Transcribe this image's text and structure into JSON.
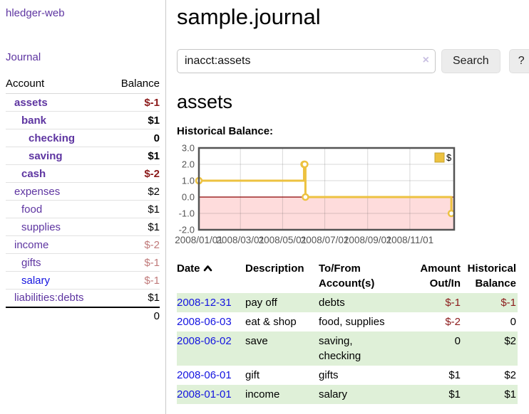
{
  "colors": {
    "accent_purple": "#5e35a1",
    "link_blue": "#1414e0",
    "negative_strong": "#8b1a1a",
    "negative_soft": "#c07a7a",
    "row_green": "#dff0d8",
    "series_gold": "#edc240",
    "negative_region_pink": "#fedcdc",
    "zero_line_red": "#8b0000",
    "axis_gray": "#545454"
  },
  "sidebar": {
    "brand": "hledger-web",
    "journal_link": "Journal",
    "table": {
      "headers": {
        "account": "Account",
        "balance": "Balance"
      },
      "accounts": [
        {
          "name": "assets",
          "level": 1,
          "bold": true,
          "balance": "$-1",
          "balance_style": "neg-strong"
        },
        {
          "name": "bank",
          "level": 2,
          "bold": true,
          "balance": "$1",
          "balance_style": "pos"
        },
        {
          "name": "checking",
          "level": 3,
          "bold": true,
          "balance": "0",
          "balance_style": "pos"
        },
        {
          "name": "saving",
          "level": 3,
          "bold": true,
          "balance": "$1",
          "balance_style": "pos"
        },
        {
          "name": "cash",
          "level": 2,
          "bold": true,
          "balance": "$-2",
          "balance_style": "neg-strong"
        },
        {
          "name": "expenses",
          "level": 1,
          "bold": false,
          "balance": "$2",
          "balance_style": "pos"
        },
        {
          "name": "food",
          "level": 2,
          "bold": false,
          "balance": "$1",
          "balance_style": "pos"
        },
        {
          "name": "supplies",
          "level": 2,
          "bold": false,
          "balance": "$1",
          "balance_style": "pos"
        },
        {
          "name": "income",
          "level": 1,
          "bold": false,
          "balance": "$-2",
          "balance_style": "neg-soft"
        },
        {
          "name": "gifts",
          "level": 2,
          "bold": false,
          "balance": "$-1",
          "balance_style": "neg-soft"
        },
        {
          "name": "salary",
          "level": 2,
          "bold": false,
          "balance": "$-1",
          "balance_style": "neg-soft",
          "link_style": "unvisited"
        },
        {
          "name": "liabilities:debts",
          "level": 1,
          "bold": false,
          "balance": "$1",
          "balance_style": "pos"
        }
      ],
      "total": "0"
    }
  },
  "header": {
    "title": "sample.journal"
  },
  "search": {
    "value": "inacct:assets",
    "clear_icon": "×",
    "button_label": "Search",
    "help_label": "?"
  },
  "account_page": {
    "title": "assets",
    "chart_label": "Historical Balance:"
  },
  "chart_data": {
    "type": "line",
    "step": true,
    "title": "Historical Balance:",
    "legend": [
      {
        "label": "$",
        "color": "#edc240"
      }
    ],
    "legend_position": "top-right",
    "ylim": [
      -2,
      3
    ],
    "yticks": [
      "3.0",
      "2.0",
      "1.0",
      "0.0",
      "-1.0",
      "-2.0"
    ],
    "ytick_values": [
      3,
      2,
      1,
      0,
      -1,
      -2
    ],
    "xticks": [
      "2008/01/01",
      "2008/03/01",
      "2008/05/01",
      "2008/07/01",
      "2008/09/01",
      "2008/11/01"
    ],
    "x_start": "2008-01-01",
    "x_span_days": 369,
    "grid": true,
    "series": [
      {
        "name": "$",
        "color": "#edc240",
        "points": [
          {
            "x": "2008-01-01",
            "y": 1
          },
          {
            "x": "2008-06-01",
            "y": 2
          },
          {
            "x": "2008-06-02",
            "y": 2
          },
          {
            "x": "2008-06-03",
            "y": 0
          },
          {
            "x": "2008-12-31",
            "y": -1
          }
        ]
      }
    ],
    "negative_region_color": "#fedcdc",
    "zero_line_color": "#8b0000"
  },
  "register": {
    "headers": {
      "date": "Date",
      "sort_icon": "chevron-up",
      "description": "Description",
      "accounts": "To/From Account(s)",
      "amount": "Amount Out/In",
      "balance": "Historical Balance"
    },
    "rows": [
      {
        "date": "2008-12-31",
        "description": "pay off",
        "accounts": "debts",
        "amount": "$-1",
        "amount_neg": true,
        "balance": "$-1",
        "balance_neg": true,
        "shade": true
      },
      {
        "date": "2008-06-03",
        "description": "eat & shop",
        "accounts": "food, supplies",
        "amount": "$-2",
        "amount_neg": true,
        "balance": "0",
        "balance_neg": false,
        "shade": false
      },
      {
        "date": "2008-06-02",
        "description": "save",
        "accounts": "saving, checking",
        "amount": "0",
        "amount_neg": false,
        "balance": "$2",
        "balance_neg": false,
        "shade": true
      },
      {
        "date": "2008-06-01",
        "description": "gift",
        "accounts": "gifts",
        "amount": "$1",
        "amount_neg": false,
        "balance": "$2",
        "balance_neg": false,
        "shade": false
      },
      {
        "date": "2008-01-01",
        "description": "income",
        "accounts": "salary",
        "amount": "$1",
        "amount_neg": false,
        "balance": "$1",
        "balance_neg": false,
        "shade": true
      }
    ]
  }
}
